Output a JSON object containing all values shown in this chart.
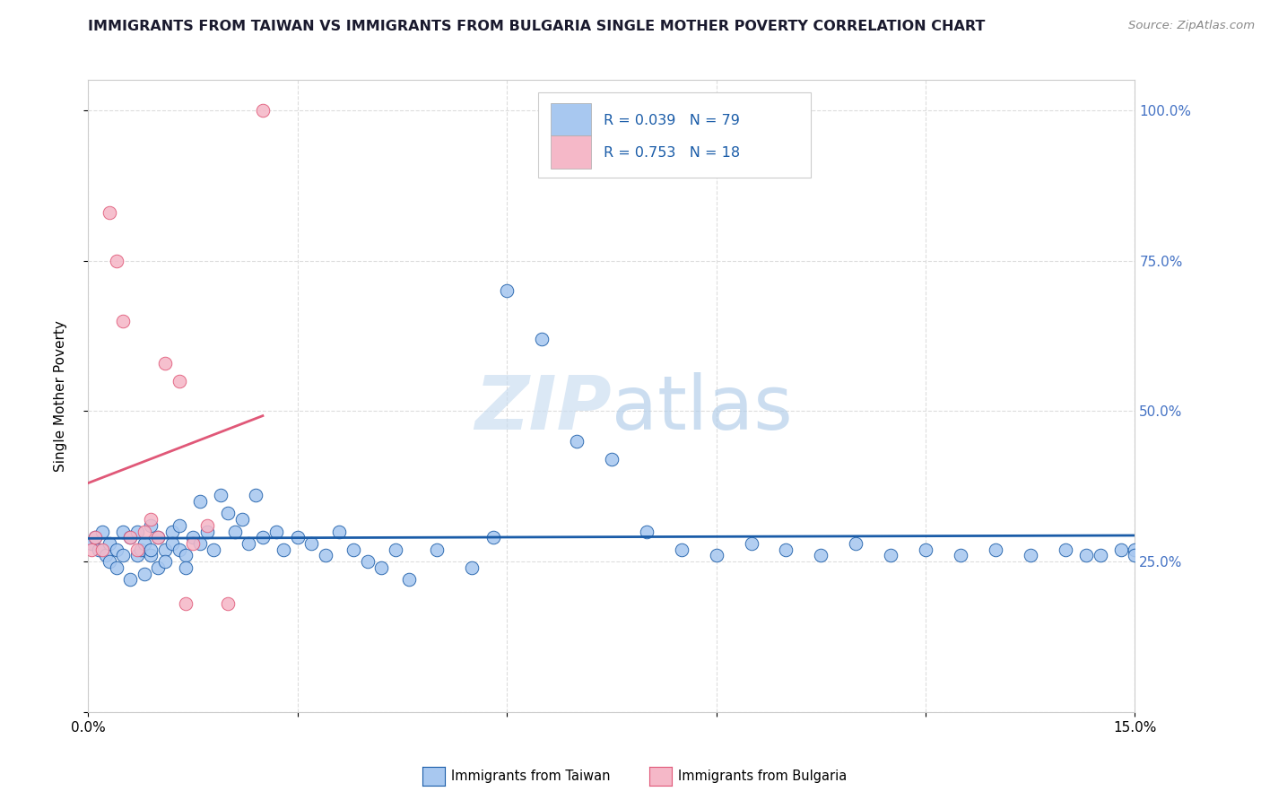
{
  "title": "IMMIGRANTS FROM TAIWAN VS IMMIGRANTS FROM BULGARIA SINGLE MOTHER POVERTY CORRELATION CHART",
  "source": "Source: ZipAtlas.com",
  "ylabel": "Single Mother Poverty",
  "legend_taiwan": "Immigrants from Taiwan",
  "legend_bulgaria": "Immigrants from Bulgaria",
  "r_taiwan": 0.039,
  "n_taiwan": 79,
  "r_bulgaria": 0.753,
  "n_bulgaria": 18,
  "color_taiwan": "#a8c8f0",
  "color_bulgaria": "#f5b8c8",
  "line_color_taiwan": "#1a5ca8",
  "line_color_bulgaria": "#e05878",
  "right_axis_color": "#4472c4",
  "title_color": "#1a1a2e",
  "source_color": "#888888",
  "xlim": [
    0.0,
    0.15
  ],
  "ylim": [
    0.0,
    1.05
  ],
  "taiwan_x": [
    0.0005,
    0.001,
    0.0015,
    0.002,
    0.0025,
    0.003,
    0.003,
    0.004,
    0.004,
    0.005,
    0.005,
    0.006,
    0.006,
    0.007,
    0.007,
    0.0075,
    0.008,
    0.008,
    0.009,
    0.009,
    0.009,
    0.01,
    0.01,
    0.011,
    0.011,
    0.012,
    0.012,
    0.013,
    0.013,
    0.014,
    0.014,
    0.015,
    0.016,
    0.016,
    0.017,
    0.018,
    0.019,
    0.02,
    0.021,
    0.022,
    0.023,
    0.024,
    0.025,
    0.027,
    0.028,
    0.03,
    0.032,
    0.034,
    0.036,
    0.038,
    0.04,
    0.042,
    0.044,
    0.046,
    0.05,
    0.055,
    0.058,
    0.06,
    0.065,
    0.07,
    0.075,
    0.08,
    0.085,
    0.09,
    0.095,
    0.1,
    0.105,
    0.11,
    0.115,
    0.12,
    0.125,
    0.13,
    0.135,
    0.14,
    0.143,
    0.145,
    0.148,
    0.15,
    0.15
  ],
  "taiwan_y": [
    0.28,
    0.29,
    0.27,
    0.3,
    0.26,
    0.28,
    0.25,
    0.27,
    0.24,
    0.3,
    0.26,
    0.29,
    0.22,
    0.3,
    0.26,
    0.27,
    0.28,
    0.23,
    0.31,
    0.26,
    0.27,
    0.29,
    0.24,
    0.27,
    0.25,
    0.3,
    0.28,
    0.27,
    0.31,
    0.26,
    0.24,
    0.29,
    0.35,
    0.28,
    0.3,
    0.27,
    0.36,
    0.33,
    0.3,
    0.32,
    0.28,
    0.36,
    0.29,
    0.3,
    0.27,
    0.29,
    0.28,
    0.26,
    0.3,
    0.27,
    0.25,
    0.24,
    0.27,
    0.22,
    0.27,
    0.24,
    0.29,
    0.7,
    0.62,
    0.45,
    0.42,
    0.3,
    0.27,
    0.26,
    0.28,
    0.27,
    0.26,
    0.28,
    0.26,
    0.27,
    0.26,
    0.27,
    0.26,
    0.27,
    0.26,
    0.26,
    0.27,
    0.27,
    0.26
  ],
  "bulgaria_x": [
    0.0005,
    0.001,
    0.002,
    0.003,
    0.004,
    0.005,
    0.006,
    0.007,
    0.008,
    0.009,
    0.01,
    0.011,
    0.013,
    0.014,
    0.015,
    0.017,
    0.02,
    0.025
  ],
  "bulgaria_y": [
    0.27,
    0.29,
    0.27,
    0.83,
    0.75,
    0.65,
    0.29,
    0.27,
    0.3,
    0.32,
    0.29,
    0.58,
    0.55,
    0.18,
    0.28,
    0.31,
    0.18,
    1.0
  ],
  "grid_color": "#dddddd",
  "bg_color": "#ffffff"
}
